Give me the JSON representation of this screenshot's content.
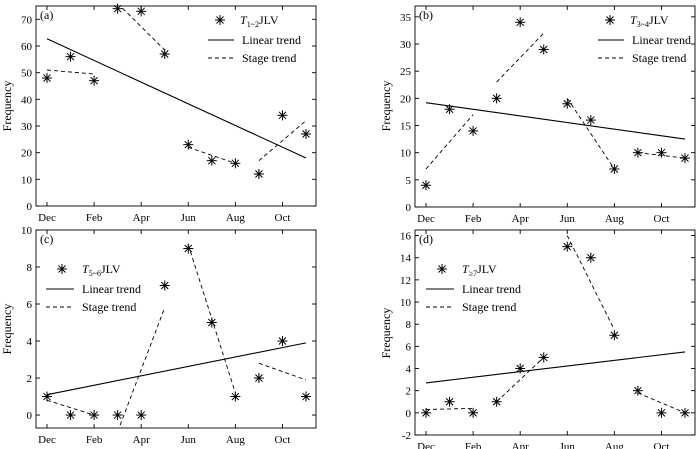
{
  "chart_data": [
    {
      "type": "scatter",
      "panel_label": "(a)",
      "legend": {
        "series_label": "T",
        "series_sub": "1~2",
        "series_suffix": "JLV",
        "linear": "Linear trend",
        "stage": "Stage trend",
        "placement": "top-right"
      },
      "ylabel": "Frequency",
      "ylim": [
        0,
        75
      ],
      "yticks": [
        0,
        10,
        20,
        30,
        40,
        50,
        60,
        70
      ],
      "x_tick_labels": [
        "Dec",
        "Feb",
        "Apr",
        "Jun",
        "Aug",
        "Oct"
      ],
      "values": [
        48,
        56,
        47,
        74,
        73,
        57,
        23,
        17,
        16,
        12,
        34,
        27
      ],
      "linear_trend": [
        62.7,
        18.0
      ],
      "stage_trends": [
        {
          "from": 0,
          "to": 2,
          "y": [
            51,
            49.5
          ]
        },
        {
          "from": 3,
          "to": 5,
          "y": [
            76,
            58.5
          ]
        },
        {
          "from": 6,
          "to": 8,
          "y": [
            22,
            16
          ]
        },
        {
          "from": 9,
          "to": 11,
          "y": [
            17,
            32
          ]
        }
      ]
    },
    {
      "type": "scatter",
      "panel_label": "(b)",
      "legend": {
        "series_label": "T",
        "series_sub": "3~4",
        "series_suffix": "JLV",
        "linear": "Linear trend",
        "stage": "Stage trend",
        "placement": "top-right"
      },
      "ylabel": "Frequency",
      "ylim": [
        0,
        37
      ],
      "yticks": [
        0,
        5,
        10,
        15,
        20,
        25,
        30,
        35
      ],
      "x_tick_labels": [
        "Dec",
        "Feb",
        "Apr",
        "Jun",
        "Aug",
        "Oct"
      ],
      "values": [
        4,
        18,
        14,
        20,
        34,
        29,
        19,
        16,
        7,
        10,
        10,
        9
      ],
      "linear_trend": [
        19.2,
        12.5
      ],
      "stage_trends": [
        {
          "from": 0,
          "to": 2,
          "y": [
            7,
            17
          ]
        },
        {
          "from": 3,
          "to": 5,
          "y": [
            23,
            32
          ]
        },
        {
          "from": 6,
          "to": 8,
          "y": [
            20,
            7
          ]
        },
        {
          "from": 9,
          "to": 11,
          "y": [
            10,
            9
          ]
        }
      ]
    },
    {
      "type": "scatter",
      "panel_label": "(c)",
      "legend": {
        "series_label": "T",
        "series_sub": "5~6",
        "series_suffix": "JLV",
        "linear": "Linear trend",
        "stage": "Stage trend",
        "placement": "top-left"
      },
      "ylabel": "Frequency",
      "ylim": [
        -0.7,
        10
      ],
      "yticks": [
        0,
        2,
        4,
        6,
        8,
        10
      ],
      "x_tick_labels": [
        "Dec",
        "Feb",
        "Apr",
        "Jun",
        "Aug",
        "Oct"
      ],
      "values": [
        1,
        0,
        0,
        0,
        0,
        7,
        9,
        5,
        1,
        2,
        4,
        1
      ],
      "linear_trend": [
        1.1,
        3.9
      ],
      "stage_trends": [
        {
          "from": 0,
          "to": 2,
          "y": [
            0.8,
            0
          ]
        },
        {
          "from": 3,
          "to": 5,
          "y": [
            -0.9,
            5.8
          ]
        },
        {
          "from": 6,
          "to": 8,
          "y": [
            9.2,
            1.2
          ]
        },
        {
          "from": 9,
          "to": 11,
          "y": [
            2.8,
            1.9
          ]
        }
      ]
    },
    {
      "type": "scatter",
      "panel_label": "(d)",
      "legend": {
        "series_label": "T",
        "series_sub": "≥7",
        "series_suffix": "JLV",
        "linear": "Linear trend",
        "stage": "Stage trend",
        "placement": "top-left"
      },
      "ylabel": "Frequency",
      "ylim": [
        -2,
        16.5
      ],
      "yticks": [
        -2,
        0,
        2,
        4,
        6,
        8,
        10,
        12,
        14,
        16
      ],
      "x_tick_labels": [
        "Dec",
        "Feb",
        "Apr",
        "Jun",
        "Aug",
        "Oct"
      ],
      "values": [
        0,
        1,
        0,
        1,
        4,
        5,
        15,
        14,
        7,
        2,
        0,
        0
      ],
      "linear_trend": [
        2.7,
        5.5
      ],
      "stage_trends": [
        {
          "from": 0,
          "to": 2,
          "y": [
            0.3,
            0.4
          ]
        },
        {
          "from": 3,
          "to": 5,
          "y": [
            1,
            5
          ]
        },
        {
          "from": 6,
          "to": 8,
          "y": [
            16,
            7.5
          ]
        },
        {
          "from": 9,
          "to": 11,
          "y": [
            1.8,
            0
          ]
        }
      ]
    }
  ]
}
